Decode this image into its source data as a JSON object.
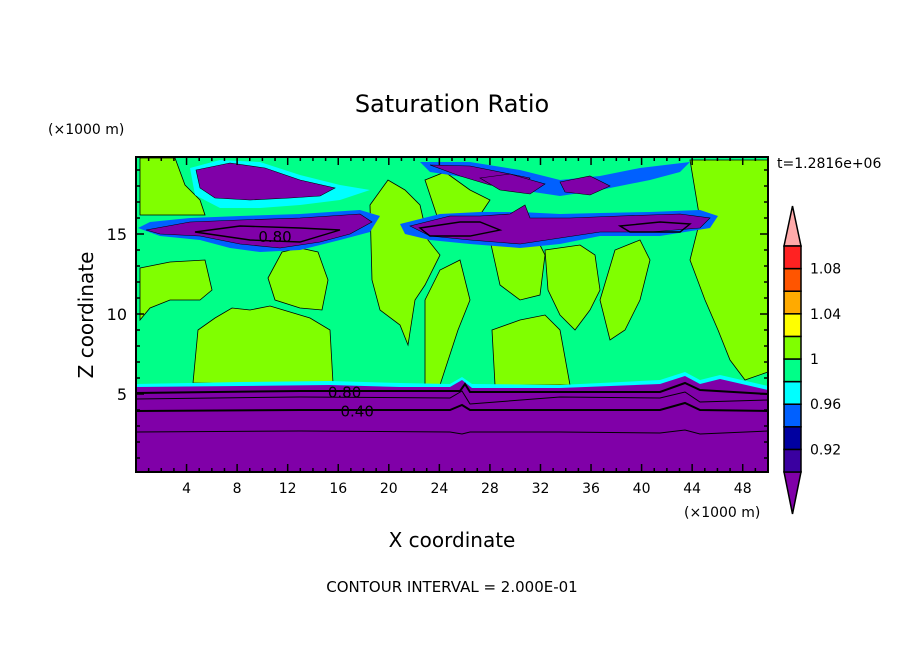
{
  "chart_data": {
    "type": "heatmap",
    "subtype": "filled-contour",
    "title": "Saturation Ratio",
    "xlabel": "X coordinate",
    "ylabel": "Z coordinate",
    "x_unit_label": "(×1000 m)",
    "y_unit_label": "(×1000 m)",
    "time_label": "t=1.2816e+06",
    "footer": "CONTOUR INTERVAL = 2.000E-01",
    "xlim": [
      0,
      50
    ],
    "ylim": [
      0,
      20
    ],
    "x_ticks": [
      4,
      8,
      12,
      16,
      20,
      24,
      28,
      32,
      36,
      40,
      44,
      48
    ],
    "y_ticks": [
      5,
      10,
      15
    ],
    "contour_labels": [
      {
        "text": "0.80",
        "x": 11,
        "z": 14.8
      },
      {
        "text": "0.80",
        "x": 16.5,
        "z": 5.1
      },
      {
        "text": "0.40",
        "x": 17.5,
        "z": 3.9
      }
    ],
    "colorbar": {
      "levels": [
        0.9,
        0.92,
        0.94,
        0.96,
        0.98,
        1.0,
        1.02,
        1.04,
        1.06,
        1.08,
        1.1
      ],
      "tick_labels": [
        "0.92",
        "0.96",
        "1",
        "1.04",
        "1.08"
      ],
      "colors": [
        "#8000a8",
        "#3a00a0",
        "#0000a0",
        "#0060ff",
        "#00ffff",
        "#00ff88",
        "#80ff00",
        "#ffff00",
        "#ffaa00",
        "#ff5500",
        "#ff2222",
        "#ffaaaa"
      ]
    }
  }
}
